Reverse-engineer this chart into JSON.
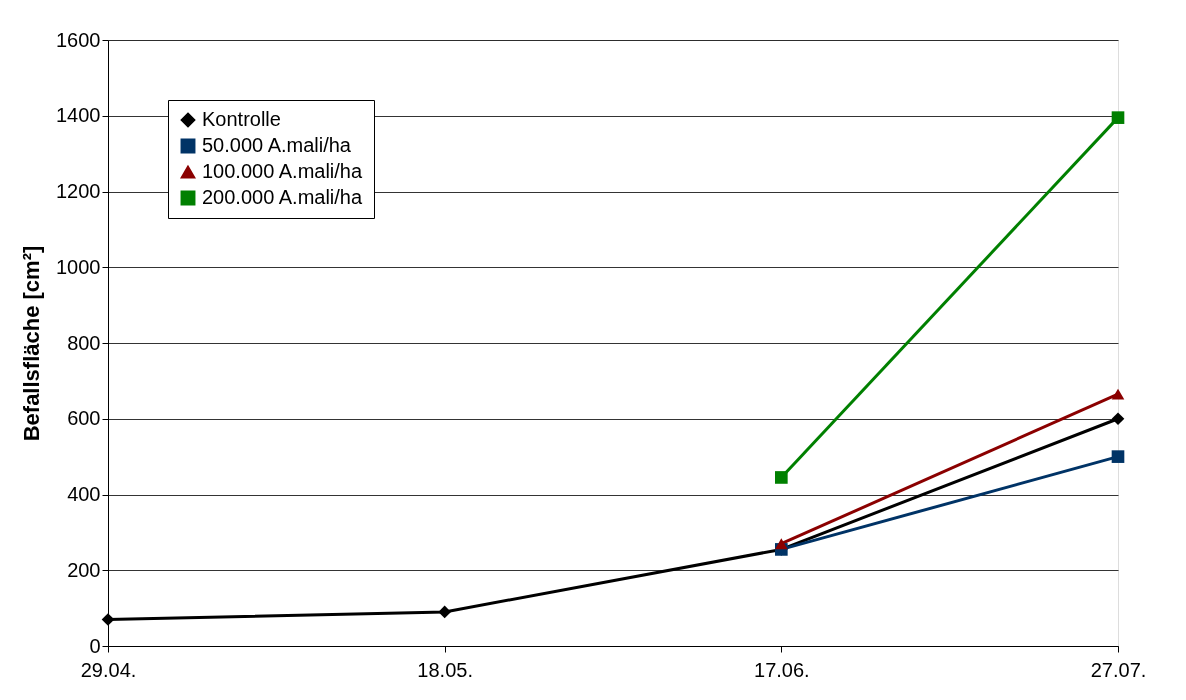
{
  "chart_data": {
    "type": "line",
    "ylabel": "Befallsfläche [cm²]",
    "categories": [
      "29.04.",
      "18.05.",
      "17.06.",
      "27.07."
    ],
    "series": [
      {
        "name": "Kontrolle",
        "color": "#000000",
        "marker": "diamond",
        "values": [
          70,
          90,
          255,
          600
        ]
      },
      {
        "name": "50.000 A.mali/ha",
        "color": "#003366",
        "marker": "square",
        "values": [
          null,
          null,
          255,
          500
        ]
      },
      {
        "name": "100.000 A.mali/ha",
        "color": "#8b0000",
        "marker": "triangle",
        "values": [
          null,
          null,
          270,
          665
        ]
      },
      {
        "name": "200.000 A.mali/ha",
        "color": "#008000",
        "marker": "square",
        "values": [
          null,
          null,
          445,
          1395
        ]
      }
    ],
    "ylim": [
      0,
      1600
    ],
    "yticks": [
      0,
      200,
      400,
      600,
      800,
      1000,
      1200,
      1400,
      1600
    ],
    "grid": "y",
    "legend": "top left",
    "line_style": "solid"
  }
}
